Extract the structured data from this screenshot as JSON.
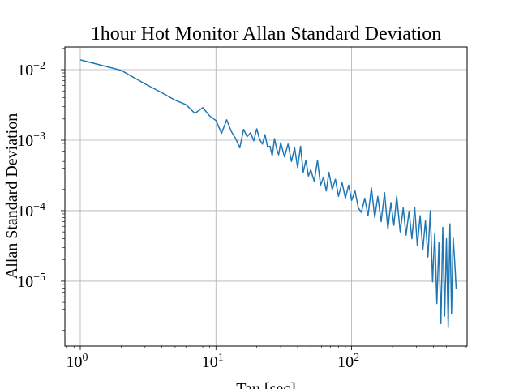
{
  "chart_data": {
    "type": "line",
    "title": "1hour Hot Monitor Allan Standard Deviation",
    "xlabel": "Tau [sec]",
    "ylabel": "Allan Standard Deviation",
    "xscale": "log",
    "yscale": "log",
    "xlim": [
      0.77,
      710
    ],
    "ylim": [
      1.2e-06,
      0.021
    ],
    "grid": true,
    "line_color": "#1f77b4",
    "x_ticks": [
      {
        "base": "10",
        "exp": "0",
        "value": 1
      },
      {
        "base": "10",
        "exp": "1",
        "value": 10
      },
      {
        "base": "10",
        "exp": "2",
        "value": 100
      }
    ],
    "y_ticks": [
      {
        "base": "10",
        "exp": "−5",
        "value": 1e-05
      },
      {
        "base": "10",
        "exp": "−4",
        "value": 0.0001
      },
      {
        "base": "10",
        "exp": "−3",
        "value": 0.001
      },
      {
        "base": "10",
        "exp": "−2",
        "value": 0.01
      }
    ],
    "series": [
      {
        "points": [
          [
            1,
            0.0138
          ],
          [
            2,
            0.0098
          ],
          [
            3,
            0.0063
          ],
          [
            4,
            0.0047
          ],
          [
            5,
            0.0037
          ],
          [
            6,
            0.0032
          ],
          [
            7,
            0.0024
          ],
          [
            8,
            0.0029
          ],
          [
            9,
            0.0022
          ],
          [
            10,
            0.0019
          ],
          [
            11,
            0.00125
          ],
          [
            12,
            0.00195
          ],
          [
            13,
            0.00132
          ],
          [
            14,
            0.00105
          ],
          [
            15,
            0.00078
          ],
          [
            16,
            0.00142
          ],
          [
            17,
            0.00112
          ],
          [
            18,
            0.00128
          ],
          [
            19,
            0.00098
          ],
          [
            20,
            0.00145
          ],
          [
            21,
            0.00102
          ],
          [
            22,
            0.00088
          ],
          [
            23,
            0.0012
          ],
          [
            24,
            0.0008
          ],
          [
            25,
            0.00082
          ],
          [
            26,
            0.0006
          ],
          [
            27,
            0.00105
          ],
          [
            28,
            0.00076
          ],
          [
            29,
            0.00062
          ],
          [
            30,
            0.00092
          ],
          [
            32,
            0.00058
          ],
          [
            34,
            0.00088
          ],
          [
            36,
            0.0005
          ],
          [
            38,
            0.00078
          ],
          [
            40,
            0.00041
          ],
          [
            42,
            0.00082
          ],
          [
            44,
            0.00035
          ],
          [
            46,
            0.00052
          ],
          [
            48,
            0.00031
          ],
          [
            50,
            0.00038
          ],
          [
            53,
            0.00026
          ],
          [
            56,
            0.00052
          ],
          [
            59,
            0.00023
          ],
          [
            62,
            0.0003
          ],
          [
            65,
            0.00019
          ],
          [
            68,
            0.00035
          ],
          [
            72,
            0.0002
          ],
          [
            76,
            0.00028
          ],
          [
            80,
            0.00016
          ],
          [
            85,
            0.00025
          ],
          [
            90,
            0.00015
          ],
          [
            95,
            0.00023
          ],
          [
            100,
            0.00014
          ],
          [
            106,
            0.00019
          ],
          [
            112,
            0.00011
          ],
          [
            118,
            9.5e-05
          ],
          [
            125,
            0.00015
          ],
          [
            132,
            8.5e-05
          ],
          [
            140,
            0.00021
          ],
          [
            148,
            8e-05
          ],
          [
            156,
            0.00016
          ],
          [
            165,
            7e-05
          ],
          [
            175,
            0.00018
          ],
          [
            185,
            5.5e-05
          ],
          [
            195,
            0.00013
          ],
          [
            205,
            6.2e-05
          ],
          [
            215,
            0.00016
          ],
          [
            228,
            5e-05
          ],
          [
            240,
            0.00011
          ],
          [
            252,
            4.5e-05
          ],
          [
            265,
            9.8e-05
          ],
          [
            278,
            4e-05
          ],
          [
            292,
            0.00011
          ],
          [
            305,
            3.2e-05
          ],
          [
            320,
            8.5e-05
          ],
          [
            335,
            2.8e-05
          ],
          [
            350,
            7.2e-05
          ],
          [
            365,
            2.2e-05
          ],
          [
            380,
            0.0001
          ],
          [
            395,
            9.8e-06
          ],
          [
            410,
            4.8e-05
          ],
          [
            425,
            4.8e-06
          ],
          [
            440,
            3.5e-05
          ],
          [
            455,
            2.5e-06
          ],
          [
            470,
            5.8e-05
          ],
          [
            485,
            3.2e-06
          ],
          [
            500,
            4e-05
          ],
          [
            515,
            2.2e-06
          ],
          [
            530,
            6.5e-05
          ],
          [
            545,
            3.5e-06
          ],
          [
            560,
            4.2e-05
          ],
          [
            575,
            1.9e-05
          ],
          [
            590,
            7.8e-06
          ]
        ]
      }
    ]
  }
}
